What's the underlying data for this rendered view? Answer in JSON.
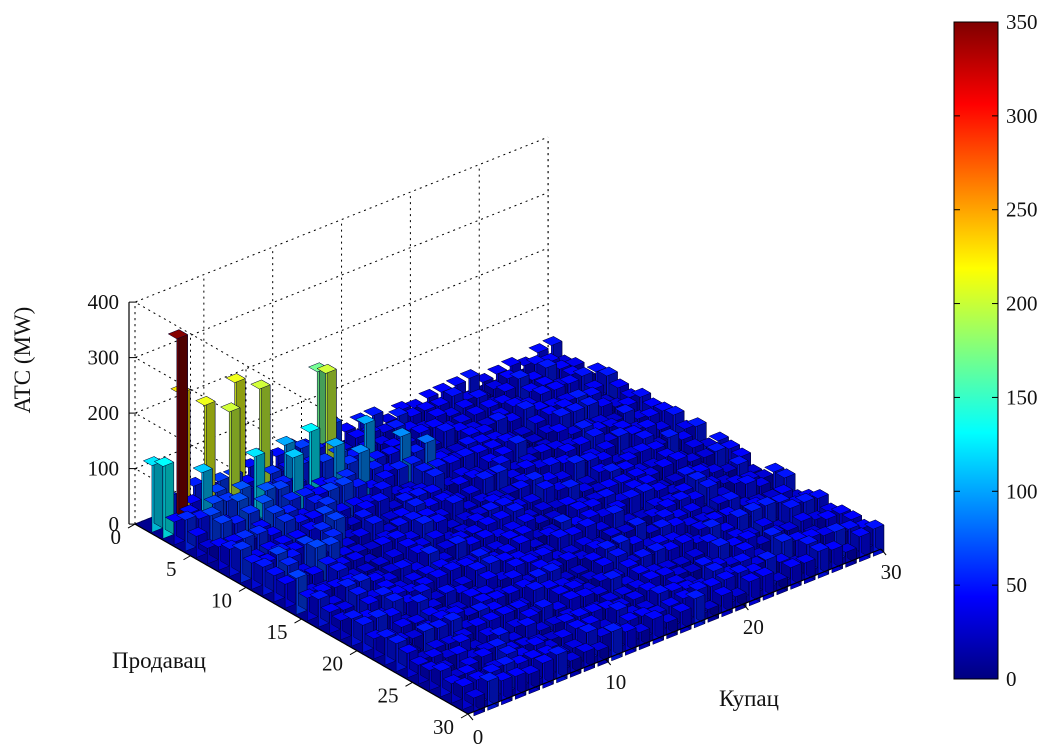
{
  "chart_data": {
    "type": "bar3d",
    "zlabel": "ATC (MW)",
    "ylabel": "Продавац",
    "xlabel": "Купац",
    "z_ticks": [
      "0",
      "100",
      "200",
      "300",
      "400"
    ],
    "seller_ticks": [
      "0",
      "5",
      "10",
      "15",
      "20",
      "25",
      "30"
    ],
    "buyer_ticks": [
      "0",
      "10",
      "20",
      "30"
    ],
    "zlim": [
      0,
      400
    ],
    "seller_range": [
      0,
      30
    ],
    "buyer_range": [
      0,
      30
    ],
    "grid": true,
    "colormap": "jet",
    "colorbar": {
      "clim": [
        0,
        350
      ],
      "ticks": [
        "0",
        "50",
        "100",
        "150",
        "200",
        "250",
        "300",
        "350"
      ]
    },
    "bars": {
      "grid_size": [
        30,
        30
      ],
      "note_background": "most remaining buyer/seller pairs approx 20-60 MW",
      "highlighted": [
        {
          "seller": 2,
          "buyer": 2,
          "value": 350
        },
        {
          "seller": 1,
          "buyer": 3,
          "value": 230
        },
        {
          "seller": 2,
          "buyer": 4,
          "value": 210
        },
        {
          "seller": 3,
          "buyer": 5,
          "value": 200
        },
        {
          "seller": 1,
          "buyer": 7,
          "value": 210
        },
        {
          "seller": 2,
          "buyer": 8,
          "value": 200
        },
        {
          "seller": 3,
          "buyer": 12,
          "value": 200
        },
        {
          "seller": 1,
          "buyer": 13,
          "value": 170
        },
        {
          "seller": 1,
          "buyer": 1,
          "value": 120
        },
        {
          "seller": 2,
          "buyer": 1,
          "value": 130
        },
        {
          "seller": 3,
          "buyer": 3,
          "value": 110
        },
        {
          "seller": 4,
          "buyer": 6,
          "value": 120
        },
        {
          "seller": 5,
          "buyer": 8,
          "value": 110
        },
        {
          "seller": 4,
          "buyer": 10,
          "value": 125
        },
        {
          "seller": 3,
          "buyer": 9,
          "value": 100
        },
        {
          "seller": 5,
          "buyer": 11,
          "value": 100
        },
        {
          "seller": 4,
          "buyer": 14,
          "value": 100
        },
        {
          "seller": 6,
          "buyer": 15,
          "value": 90
        },
        {
          "seller": 7,
          "buyer": 16,
          "value": 80
        },
        {
          "seller": 6,
          "buyer": 12,
          "value": 90
        }
      ]
    }
  }
}
